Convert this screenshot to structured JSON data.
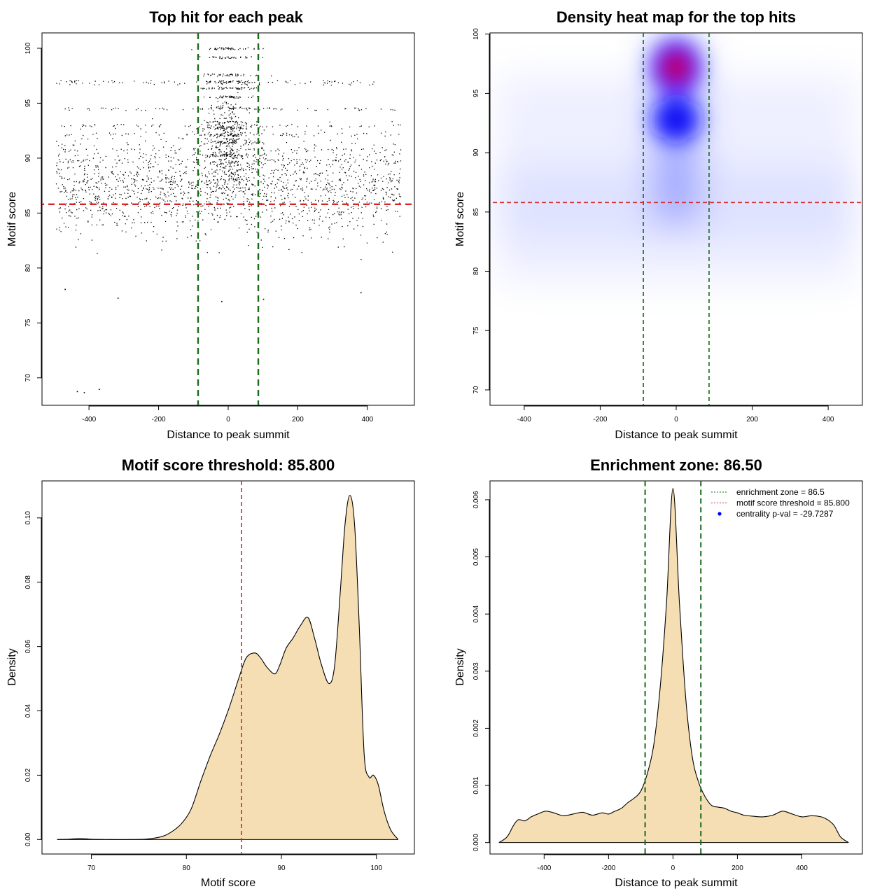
{
  "chart_data": [
    {
      "type": "scatter",
      "title": "Top hit for each peak",
      "xlabel": "Distance to peak summit",
      "ylabel": "Motif score",
      "xlim": [
        -535,
        535
      ],
      "ylim": [
        67.5,
        101.4
      ],
      "x_ticks": [
        -400,
        -200,
        0,
        200,
        400
      ],
      "y_ticks": [
        70,
        75,
        80,
        85,
        90,
        95,
        100
      ],
      "x_tick_labels": [
        "-400",
        "-200",
        "0",
        "200",
        "400"
      ],
      "y_tick_labels": [
        "70",
        "75",
        "80",
        "85",
        "90",
        "95",
        "100"
      ],
      "hlines": [
        {
          "y": 85.8,
          "color": "#d62728",
          "style": "dashed"
        }
      ],
      "vlines": [
        {
          "x": -86.5,
          "color": "#1b6b1b",
          "style": "dashed"
        },
        {
          "x": 86.5,
          "color": "#1b6b1b",
          "style": "dashed"
        }
      ],
      "series": [
        {
          "values": [
            [
              -415,
              68.7
            ],
            [
              -435,
              68.8
            ],
            [
              -372,
              69.0
            ],
            [
              -318,
              77.3
            ],
            [
              -470,
              78.1
            ],
            [
              380,
              77.8
            ],
            [
              -20,
              77.0
            ],
            [
              100,
              77.2
            ]
          ]
        }
      ]
    },
    {
      "type": "heatmap",
      "title": "Density heat map for the top hits",
      "xlabel": "Distance to peak summit",
      "ylabel": "Motif score",
      "xlim": [
        -490,
        490
      ],
      "ylim": [
        68.7,
        100.1
      ],
      "x_ticks": [
        -400,
        -200,
        0,
        200,
        400
      ],
      "y_ticks": [
        70,
        75,
        80,
        85,
        90,
        95,
        100
      ],
      "x_tick_labels": [
        "-400",
        "-200",
        "0",
        "200",
        "400"
      ],
      "y_tick_labels": [
        "70",
        "75",
        "80",
        "85",
        "90",
        "95",
        "100"
      ],
      "colorscale": [
        "#ffffff",
        "#0000ff",
        "#ff0000"
      ],
      "density_peaks": [
        {
          "x": 0,
          "y": 97.2,
          "level": 1.0
        },
        {
          "x": 0,
          "y": 92.8,
          "level": 0.62
        }
      ],
      "hlines": [
        {
          "y": 85.8,
          "color": "#d62728",
          "style": "dashed"
        }
      ],
      "vlines": [
        {
          "x": -86.5,
          "color": "#1b6b1b",
          "style": "dashed"
        },
        {
          "x": 86.5,
          "color": "#1b6b1b",
          "style": "dashed"
        }
      ]
    },
    {
      "type": "area",
      "title": "Motif score threshold: 85.800",
      "xlabel": "Motif score",
      "ylabel": "Density",
      "xlim": [
        64.8,
        104.0
      ],
      "ylim": [
        -0.0045,
        0.1115
      ],
      "x_ticks": [
        70,
        80,
        90,
        100
      ],
      "y_ticks": [
        0.0,
        0.02,
        0.04,
        0.06,
        0.08,
        0.1
      ],
      "x_tick_labels": [
        "70",
        "80",
        "90",
        "100"
      ],
      "y_tick_labels": [
        "0.00",
        "0.02",
        "0.04",
        "0.06",
        "0.08",
        "0.10"
      ],
      "fill_color": "#f5deb3",
      "vlines": [
        {
          "x": 85.8,
          "color": "#d62728",
          "style": "dashed"
        }
      ],
      "x": [
        66.4,
        67.5,
        68.8,
        70.0,
        72.0,
        74.0,
        76.0,
        77.5,
        78.5,
        79.5,
        80.5,
        81.5,
        82.5,
        83.5,
        84.5,
        85.5,
        86.3,
        87.2,
        87.8,
        88.5,
        89.3,
        89.8,
        90.5,
        91.2,
        92.0,
        92.8,
        93.5,
        94.2,
        95.0,
        95.6,
        96.2,
        96.7,
        97.2,
        97.7,
        98.2,
        98.7,
        99.2,
        99.7,
        100.2,
        100.8,
        101.5,
        102.3
      ],
      "values": [
        0.0,
        0.0001,
        0.0003,
        0.0001,
        0.0,
        0.0,
        0.0002,
        0.001,
        0.0025,
        0.005,
        0.0095,
        0.018,
        0.026,
        0.033,
        0.041,
        0.05,
        0.0565,
        0.058,
        0.0565,
        0.0535,
        0.0515,
        0.054,
        0.0595,
        0.0625,
        0.0665,
        0.069,
        0.0625,
        0.0545,
        0.0485,
        0.054,
        0.077,
        0.098,
        0.107,
        0.098,
        0.066,
        0.027,
        0.0195,
        0.02,
        0.017,
        0.009,
        0.003,
        0.0
      ]
    },
    {
      "type": "area",
      "title": "Enrichment zone: 86.50",
      "xlabel": "Distance to peak summit",
      "ylabel": "Density",
      "xlim": [
        -568,
        588
      ],
      "ylim": [
        -0.0002,
        0.00633
      ],
      "x_ticks": [
        -400,
        -200,
        0,
        200,
        400
      ],
      "y_ticks": [
        0.0,
        0.001,
        0.002,
        0.003,
        0.004,
        0.005,
        0.006
      ],
      "x_tick_labels": [
        "-400",
        "-200",
        "0",
        "200",
        "400"
      ],
      "y_tick_labels": [
        "0.000",
        "0.001",
        "0.002",
        "0.003",
        "0.004",
        "0.005",
        "0.006"
      ],
      "fill_color": "#f5deb3",
      "vlines": [
        {
          "x": -86.5,
          "color": "#1b6b1b",
          "style": "dashed"
        },
        {
          "x": 86.5,
          "color": "#1b6b1b",
          "style": "dashed"
        }
      ],
      "x": [
        -540,
        -515,
        -495,
        -480,
        -460,
        -440,
        -420,
        -395,
        -370,
        -340,
        -310,
        -280,
        -250,
        -220,
        -200,
        -180,
        -160,
        -140,
        -120,
        -100,
        -80,
        -60,
        -40,
        -20,
        0,
        20,
        40,
        60,
        80,
        100,
        120,
        140,
        160,
        180,
        200,
        220,
        250,
        280,
        310,
        340,
        370,
        400,
        430,
        460,
        480,
        500,
        520,
        545
      ],
      "values": [
        0.0,
        0.0001,
        0.0003,
        0.0004,
        0.00038,
        0.00045,
        0.0005,
        0.00055,
        0.00052,
        0.00047,
        0.0005,
        0.00053,
        0.00048,
        0.00052,
        0.0005,
        0.00055,
        0.0006,
        0.0007,
        0.00078,
        0.0009,
        0.0012,
        0.0017,
        0.0027,
        0.0042,
        0.0062,
        0.0042,
        0.0025,
        0.0015,
        0.00105,
        0.0008,
        0.00065,
        0.00062,
        0.0006,
        0.00055,
        0.00052,
        0.00048,
        0.00046,
        0.00045,
        0.00048,
        0.00055,
        0.0005,
        0.00045,
        0.00047,
        0.00045,
        0.0004,
        0.0003,
        0.0001,
        0.0
      ],
      "legend": {
        "placement": "top-right",
        "entries": [
          {
            "label": "enrichment zone = 86.5",
            "color": "#1b6b1b",
            "marker": "dotted-line"
          },
          {
            "label": "motif score threshold = 85.800",
            "color": "#d62728",
            "marker": "dotted-line"
          },
          {
            "label": "centrality p-val = -29.7287",
            "color": "#0000ff",
            "marker": "point"
          }
        ]
      }
    }
  ]
}
